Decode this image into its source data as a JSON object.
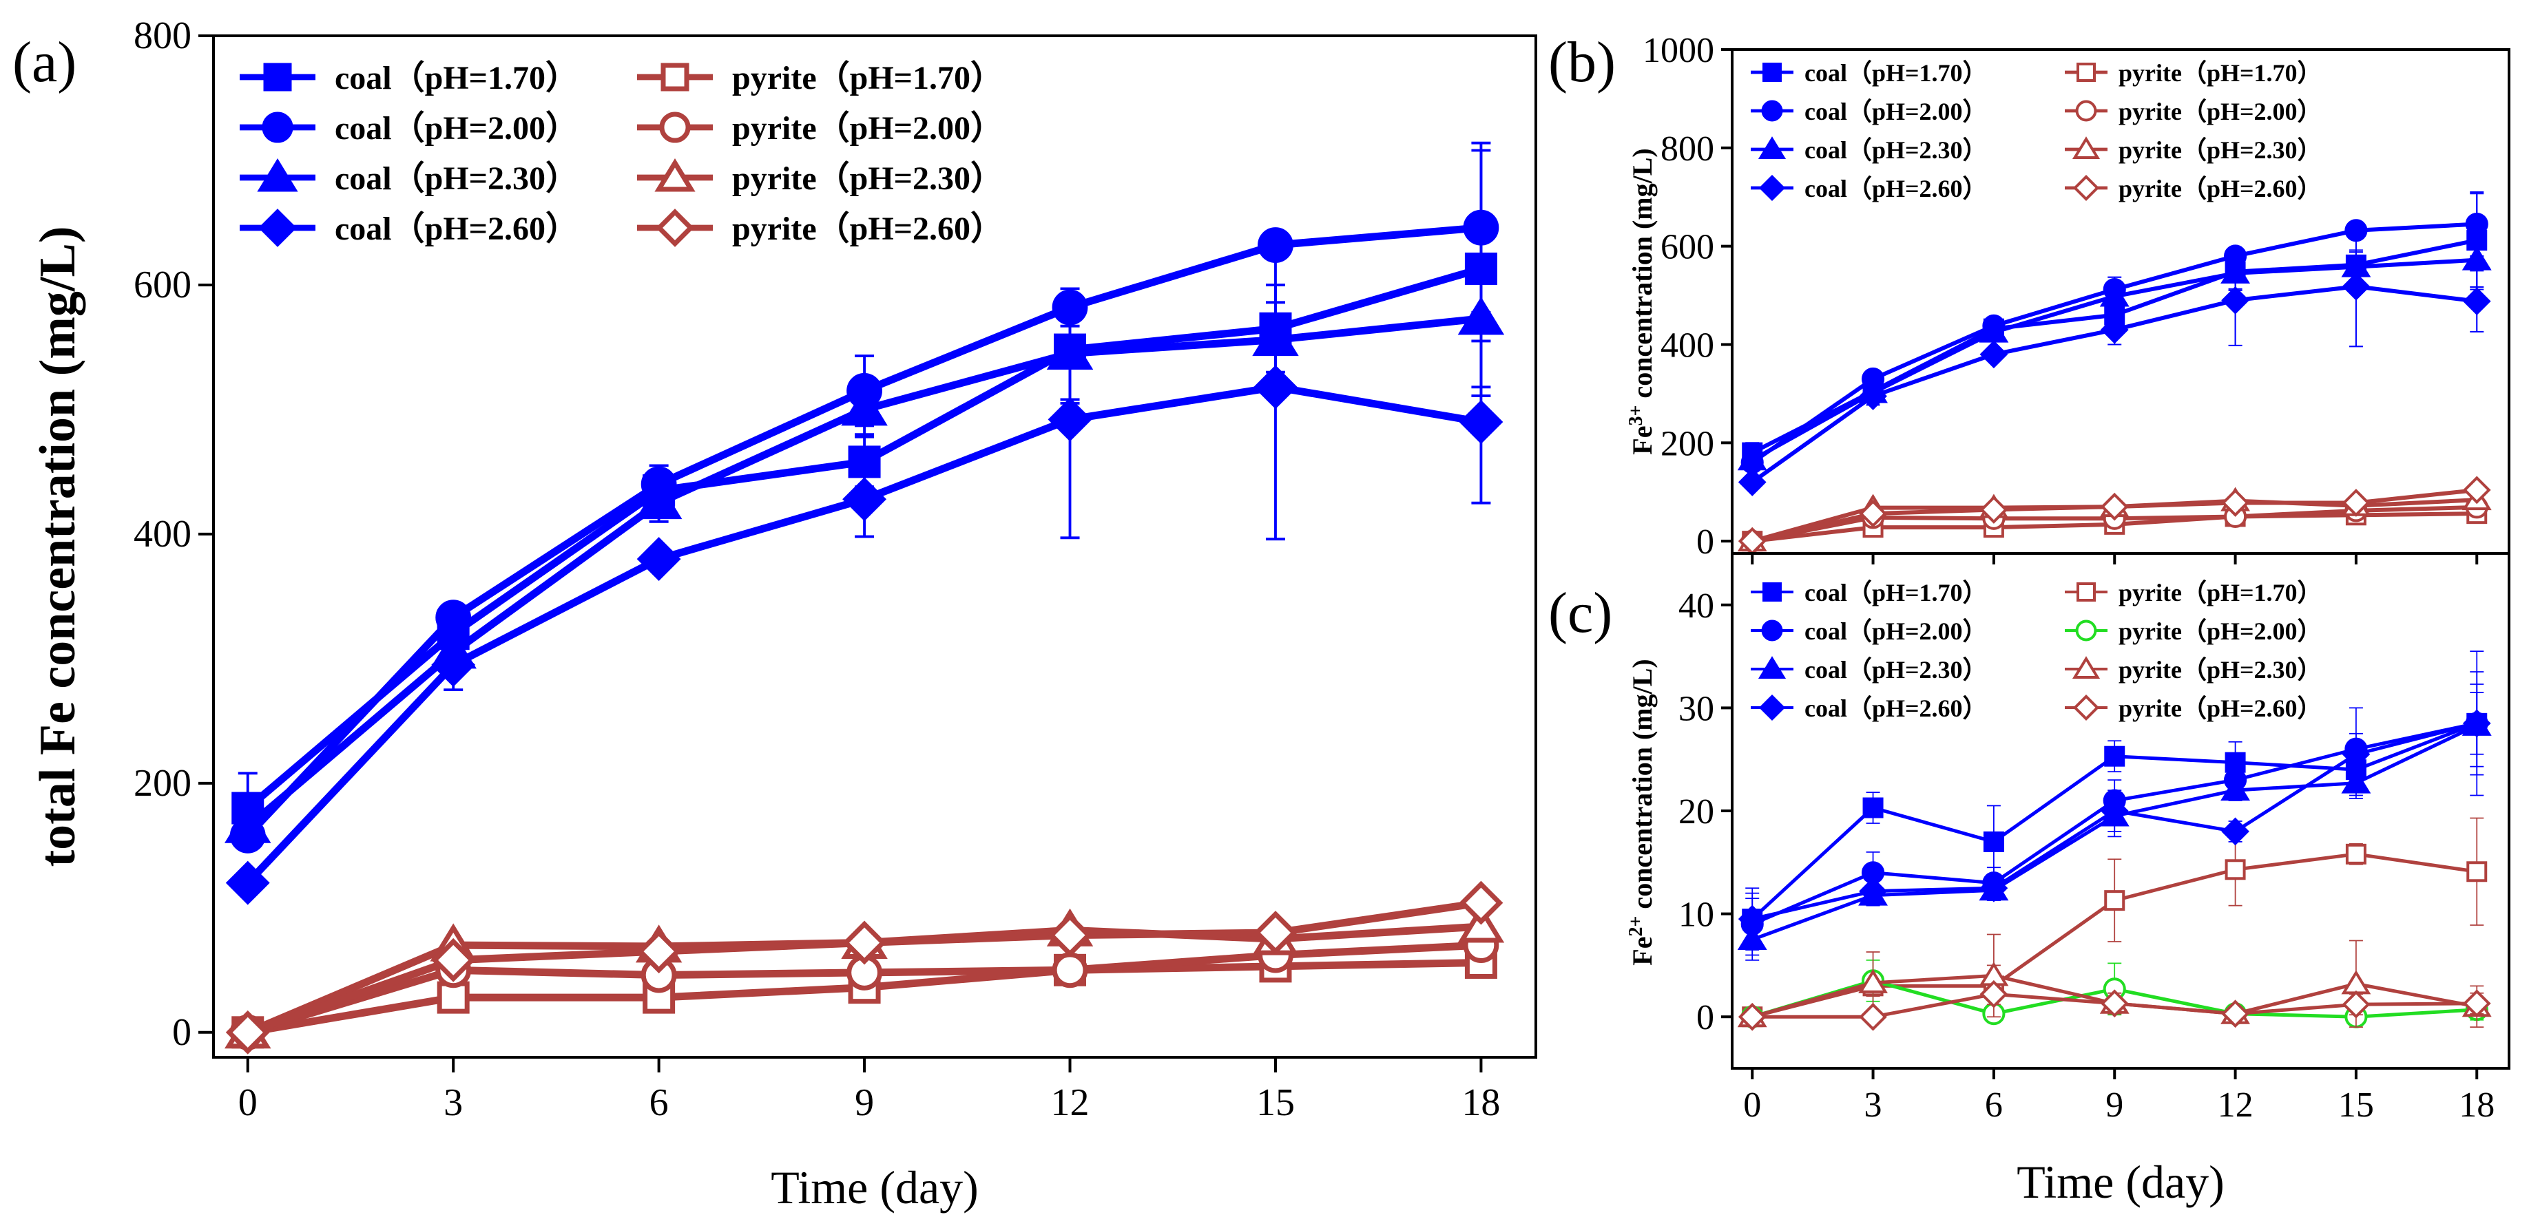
{
  "chart_data": [
    {
      "panel": "(a)",
      "type": "line",
      "ylabel": "total Fe concentration (mg/L)",
      "ylabel_sup": "",
      "xlabel": "Time (day)",
      "x": [
        0,
        3,
        6,
        9,
        12,
        15,
        18
      ],
      "xticks": [
        "0",
        "3",
        "6",
        "9",
        "12",
        "15",
        "18"
      ],
      "yticks": [
        "0",
        "200",
        "400",
        "600",
        "800"
      ],
      "xlim": [
        -0.5,
        18.8
      ],
      "ylim": [
        -20,
        800
      ],
      "legend": "top-left, two columns",
      "series": [
        {
          "name": "coal（pH=1.70）",
          "color": "#0000ff",
          "marker": "square",
          "filled": true,
          "values": [
            180,
            320,
            435,
            458,
            548,
            565,
            613
          ],
          "err": [
            28,
            15,
            10,
            20,
            40,
            35,
            95
          ]
        },
        {
          "name": "coal（pH=2.00）",
          "color": "#0000ff",
          "marker": "circle",
          "filled": true,
          "values": [
            158,
            333,
            440,
            515,
            582,
            632,
            646
          ],
          "err": [
            10,
            10,
            15,
            28,
            15,
            8,
            68
          ]
        },
        {
          "name": "coal（pH=2.30）",
          "color": "#0000ff",
          "marker": "triangle",
          "filled": true,
          "values": [
            165,
            305,
            425,
            500,
            545,
            556,
            573
          ],
          "err": [
            10,
            12,
            15,
            20,
            40,
            30,
            62
          ]
        },
        {
          "name": "coal（pH=2.60）",
          "color": "#0000ff",
          "marker": "diamond",
          "filled": true,
          "values": [
            120,
            295,
            380,
            428,
            492,
            518,
            490
          ],
          "err": [
            8,
            20,
            8,
            30,
            95,
            122,
            65
          ]
        },
        {
          "name": "pyrite（pH=1.70）",
          "color": "#b0413e",
          "marker": "square",
          "filled": false,
          "values": [
            0,
            28,
            28,
            36,
            50,
            53,
            56
          ],
          "err": [
            0,
            3,
            3,
            3,
            3,
            3,
            3
          ]
        },
        {
          "name": "pyrite（pH=2.00）",
          "color": "#b0413e",
          "marker": "circle",
          "filled": false,
          "values": [
            0,
            50,
            46,
            48,
            50,
            62,
            70
          ],
          "err": [
            0,
            3,
            3,
            3,
            3,
            3,
            3
          ]
        },
        {
          "name": "pyrite（pH=2.30）",
          "color": "#b0413e",
          "marker": "triangle",
          "filled": false,
          "values": [
            0,
            70,
            69,
            72,
            82,
            75,
            85
          ],
          "err": [
            0,
            3,
            3,
            3,
            3,
            3,
            3
          ]
        },
        {
          "name": "pyrite（pH=2.60）",
          "color": "#b0413e",
          "marker": "diamond",
          "filled": false,
          "values": [
            0,
            58,
            65,
            72,
            78,
            80,
            104
          ],
          "err": [
            0,
            3,
            3,
            3,
            3,
            3,
            3
          ]
        }
      ]
    },
    {
      "panel": "(b)",
      "type": "line",
      "ylabel": "concentration (mg/L)",
      "ylabel_prefix": "Fe",
      "ylabel_sup": "3+",
      "xlabel": "",
      "x": [
        0,
        3,
        6,
        9,
        12,
        15,
        18
      ],
      "xticks": [],
      "yticks": [
        "0",
        "200",
        "400",
        "600",
        "800",
        "1000"
      ],
      "xlim": [
        -0.5,
        18.8
      ],
      "ylim": [
        -25,
        1000
      ],
      "legend": "top-left, two columns",
      "series": [
        {
          "name": "coal（pH=1.70）",
          "color": "#0000ff",
          "marker": "square",
          "filled": true,
          "values": [
            180,
            305,
            432,
            460,
            548,
            562,
            612
          ],
          "err": [
            20,
            15,
            10,
            20,
            35,
            30,
            95
          ]
        },
        {
          "name": "coal（pH=2.00）",
          "color": "#0000ff",
          "marker": "circle",
          "filled": true,
          "values": [
            160,
            330,
            438,
            512,
            580,
            632,
            645
          ],
          "err": [
            10,
            10,
            12,
            25,
            15,
            8,
            65
          ]
        },
        {
          "name": "coal（pH=2.30）",
          "color": "#0000ff",
          "marker": "triangle",
          "filled": true,
          "values": [
            165,
            302,
            425,
            498,
            545,
            558,
            572
          ],
          "err": [
            10,
            12,
            12,
            20,
            35,
            30,
            60
          ]
        },
        {
          "name": "coal（pH=2.60）",
          "color": "#0000ff",
          "marker": "diamond",
          "filled": true,
          "values": [
            120,
            295,
            380,
            430,
            490,
            518,
            488
          ],
          "err": [
            8,
            18,
            8,
            30,
            92,
            122,
            62
          ]
        },
        {
          "name": "pyrite（pH=1.70）",
          "color": "#b0413e",
          "marker": "square",
          "filled": false,
          "values": [
            0,
            28,
            28,
            34,
            50,
            53,
            56
          ],
          "err": [
            0,
            3,
            3,
            3,
            3,
            3,
            3
          ]
        },
        {
          "name": "pyrite（pH=2.00）",
          "color": "#b0413e",
          "marker": "circle",
          "filled": false,
          "values": [
            0,
            48,
            46,
            46,
            50,
            62,
            69
          ],
          "err": [
            0,
            3,
            3,
            3,
            3,
            3,
            3
          ]
        },
        {
          "name": "pyrite（pH=2.30）",
          "color": "#b0413e",
          "marker": "triangle",
          "filled": false,
          "values": [
            0,
            68,
            68,
            70,
            82,
            72,
            84
          ],
          "err": [
            0,
            3,
            3,
            3,
            3,
            3,
            3
          ]
        },
        {
          "name": "pyrite（pH=2.60）",
          "color": "#b0413e",
          "marker": "diamond",
          "filled": false,
          "values": [
            0,
            56,
            64,
            70,
            78,
            78,
            104
          ],
          "err": [
            0,
            3,
            3,
            3,
            3,
            3,
            3
          ]
        }
      ]
    },
    {
      "panel": "(c)",
      "type": "line",
      "ylabel": "concentration (mg/L)",
      "ylabel_prefix": "Fe",
      "ylabel_sup": "2+",
      "xlabel": "Time (day)",
      "x": [
        0,
        3,
        6,
        9,
        12,
        15,
        18
      ],
      "xticks": [
        "0",
        "3",
        "6",
        "9",
        "12",
        "15",
        "18"
      ],
      "yticks": [
        "0",
        "10",
        "20",
        "30",
        "40"
      ],
      "xlim": [
        -0.5,
        18.8
      ],
      "ylim": [
        -5,
        45
      ],
      "legend": "top-left, two columns",
      "series": [
        {
          "name": "coal（pH=1.70）",
          "color": "#0000ff",
          "marker": "square",
          "filled": true,
          "values": [
            9.5,
            20.3,
            17,
            25.3,
            24.7,
            24,
            28.5
          ],
          "err": [
            3,
            1.5,
            3.5,
            1.5,
            2,
            2.5,
            7
          ]
        },
        {
          "name": "coal（pH=2.00）",
          "color": "#0000ff",
          "marker": "circle",
          "filled": true,
          "values": [
            9,
            14,
            13,
            21,
            23,
            26,
            28.5
          ],
          "err": [
            3,
            2,
            1.5,
            2,
            1.5,
            4,
            5
          ]
        },
        {
          "name": "coal（pH=2.30）",
          "color": "#0000ff",
          "marker": "triangle",
          "filled": true,
          "values": [
            7.5,
            11.8,
            12.3,
            19.5,
            22,
            22.7,
            28.3
          ],
          "err": [
            2,
            1,
            1,
            2,
            1,
            1.5,
            4
          ]
        },
        {
          "name": "coal（pH=2.60）",
          "color": "#0000ff",
          "marker": "diamond",
          "filled": true,
          "values": [
            9.5,
            12.2,
            12.5,
            20,
            18,
            25.5,
            28.5
          ],
          "err": [
            2,
            1,
            1,
            2,
            1,
            2,
            3
          ]
        },
        {
          "name": "pyrite（pH=1.70）",
          "color": "#b0413e",
          "marker": "square",
          "filled": false,
          "values": [
            0,
            3,
            3,
            11.3,
            14.3,
            15.8,
            14.1
          ],
          "err": [
            0,
            1,
            2,
            4,
            3.5,
            1,
            5.2
          ]
        },
        {
          "name": "pyrite（pH=2.00）",
          "color": "#22dd22",
          "marker": "circle",
          "filled": false,
          "values": [
            0,
            3.5,
            0.3,
            2.7,
            0.3,
            0,
            0.7
          ],
          "err": [
            0,
            2,
            0.5,
            2.5,
            0.5,
            0.5,
            1
          ]
        },
        {
          "name": "pyrite（pH=2.30）",
          "color": "#b0413e",
          "marker": "triangle",
          "filled": false,
          "values": [
            0,
            3.3,
            4,
            1.3,
            0.3,
            3.2,
            1
          ],
          "err": [
            0,
            3,
            4,
            1,
            0.5,
            4.2,
            2
          ]
        },
        {
          "name": "pyrite（pH=2.60）",
          "color": "#b0413e",
          "marker": "diamond",
          "filled": false,
          "values": [
            0,
            0,
            2.2,
            1.3,
            0.3,
            1.2,
            1.3
          ],
          "err": [
            0,
            0.5,
            1,
            1,
            0.5,
            1,
            1
          ]
        }
      ]
    }
  ]
}
